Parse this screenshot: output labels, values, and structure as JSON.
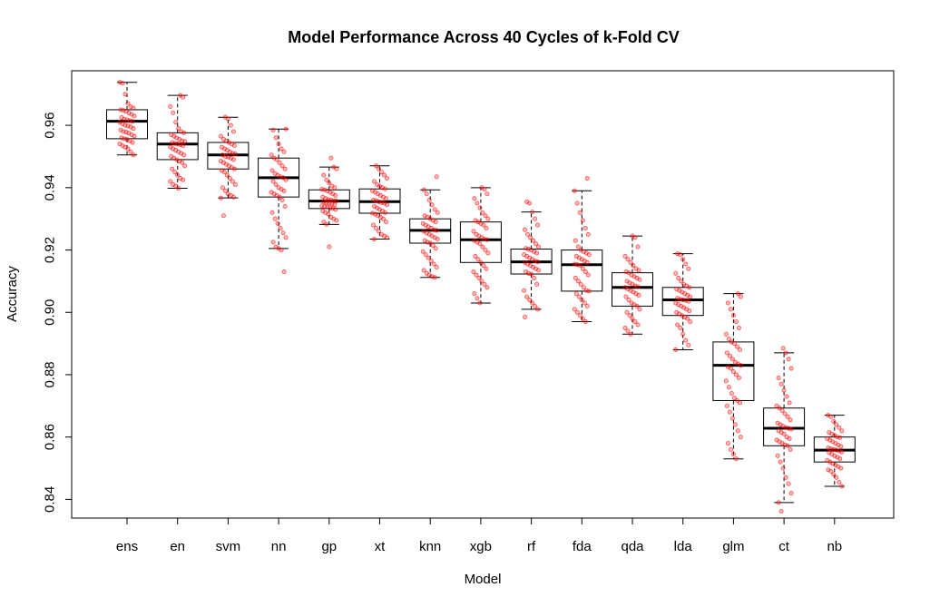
{
  "chart_data": {
    "type": "boxplot",
    "title": "Model Performance Across 40 Cycles of k-Fold CV",
    "xlabel": "Model",
    "ylabel": "Accuracy",
    "ylim": [
      0.834,
      0.9775
    ],
    "yticks": [
      0.84,
      0.86,
      0.88,
      0.9,
      0.92,
      0.94,
      0.96
    ],
    "ytick_labels": [
      "0.84",
      "0.86",
      "0.88",
      "0.90",
      "0.92",
      "0.94",
      "0.96"
    ],
    "grid": false,
    "box_color": "#000000",
    "point_color": "#ff0000",
    "categories": [
      "ens",
      "en",
      "svm",
      "nn",
      "gp",
      "xt",
      "knn",
      "xgb",
      "rf",
      "fda",
      "qda",
      "lda",
      "glm",
      "ct",
      "nb"
    ],
    "boxes": [
      {
        "name": "ens",
        "whisker_low": 0.9505,
        "q1": 0.9557,
        "median": 0.9613,
        "q3": 0.965,
        "whisker_high": 0.9738
      },
      {
        "name": "en",
        "whisker_low": 0.9398,
        "q1": 0.949,
        "median": 0.954,
        "q3": 0.9576,
        "whisker_high": 0.9696
      },
      {
        "name": "svm",
        "whisker_low": 0.9367,
        "q1": 0.946,
        "median": 0.9505,
        "q3": 0.9545,
        "whisker_high": 0.9626
      },
      {
        "name": "nn",
        "whisker_low": 0.9205,
        "q1": 0.937,
        "median": 0.9432,
        "q3": 0.9495,
        "whisker_high": 0.9588
      },
      {
        "name": "gp",
        "whisker_low": 0.9282,
        "q1": 0.9333,
        "median": 0.9357,
        "q3": 0.9393,
        "whisker_high": 0.9466
      },
      {
        "name": "xt",
        "whisker_low": 0.9235,
        "q1": 0.9318,
        "median": 0.9355,
        "q3": 0.9396,
        "whisker_high": 0.947
      },
      {
        "name": "knn",
        "whisker_low": 0.9112,
        "q1": 0.9222,
        "median": 0.9263,
        "q3": 0.93,
        "whisker_high": 0.9393
      },
      {
        "name": "xgb",
        "whisker_low": 0.903,
        "q1": 0.916,
        "median": 0.9233,
        "q3": 0.929,
        "whisker_high": 0.94
      },
      {
        "name": "rf",
        "whisker_low": 0.901,
        "q1": 0.9123,
        "median": 0.9162,
        "q3": 0.9203,
        "whisker_high": 0.9322
      },
      {
        "name": "fda",
        "whisker_low": 0.897,
        "q1": 0.9068,
        "median": 0.9153,
        "q3": 0.92,
        "whisker_high": 0.939
      },
      {
        "name": "qda",
        "whisker_low": 0.893,
        "q1": 0.902,
        "median": 0.908,
        "q3": 0.9127,
        "whisker_high": 0.9245
      },
      {
        "name": "lda",
        "whisker_low": 0.888,
        "q1": 0.899,
        "median": 0.904,
        "q3": 0.908,
        "whisker_high": 0.9188
      },
      {
        "name": "glm",
        "whisker_low": 0.853,
        "q1": 0.8717,
        "median": 0.883,
        "q3": 0.8905,
        "whisker_high": 0.906
      },
      {
        "name": "ct",
        "whisker_low": 0.839,
        "q1": 0.8572,
        "median": 0.8628,
        "q3": 0.8693,
        "whisker_high": 0.887
      },
      {
        "name": "nb",
        "whisker_low": 0.8442,
        "q1": 0.852,
        "median": 0.8558,
        "q3": 0.86,
        "whisker_high": 0.867
      }
    ],
    "points": {
      "ens": [
        0.9738,
        0.9735,
        0.97,
        0.967,
        0.966,
        0.9655,
        0.965,
        0.9648,
        0.9645,
        0.964,
        0.9635,
        0.963,
        0.9625,
        0.962,
        0.9618,
        0.9615,
        0.9613,
        0.961,
        0.9605,
        0.96,
        0.9598,
        0.9595,
        0.959,
        0.9585,
        0.958,
        0.9578,
        0.9575,
        0.957,
        0.9565,
        0.956,
        0.9557,
        0.9555,
        0.955,
        0.9545,
        0.954,
        0.9535,
        0.953,
        0.9525,
        0.9515,
        0.9505
      ],
      "en": [
        0.9696,
        0.969,
        0.966,
        0.964,
        0.961,
        0.959,
        0.958,
        0.9576,
        0.957,
        0.9565,
        0.956,
        0.9555,
        0.955,
        0.9548,
        0.9545,
        0.9542,
        0.954,
        0.9538,
        0.9535,
        0.953,
        0.9525,
        0.952,
        0.9515,
        0.951,
        0.9505,
        0.95,
        0.9495,
        0.949,
        0.9485,
        0.948,
        0.947,
        0.946,
        0.945,
        0.944,
        0.943,
        0.9425,
        0.942,
        0.941,
        0.9405,
        0.9398
      ],
      "svm": [
        0.9626,
        0.962,
        0.96,
        0.958,
        0.9565,
        0.9555,
        0.955,
        0.9545,
        0.954,
        0.9535,
        0.953,
        0.9525,
        0.952,
        0.9515,
        0.951,
        0.9508,
        0.9505,
        0.95,
        0.9498,
        0.9495,
        0.949,
        0.9485,
        0.948,
        0.9475,
        0.947,
        0.9465,
        0.946,
        0.9455,
        0.945,
        0.944,
        0.943,
        0.942,
        0.941,
        0.94,
        0.939,
        0.938,
        0.9375,
        0.937,
        0.9367,
        0.931
      ],
      "nn": [
        0.9588,
        0.9585,
        0.956,
        0.954,
        0.9525,
        0.9515,
        0.9505,
        0.9495,
        0.949,
        0.948,
        0.947,
        0.946,
        0.9455,
        0.9445,
        0.944,
        0.9435,
        0.9432,
        0.9425,
        0.942,
        0.941,
        0.94,
        0.9395,
        0.939,
        0.9385,
        0.938,
        0.9375,
        0.937,
        0.936,
        0.934,
        0.932,
        0.93,
        0.9285,
        0.927,
        0.9255,
        0.924,
        0.9225,
        0.921,
        0.9205,
        0.92,
        0.913
      ],
      "gp": [
        0.9495,
        0.9466,
        0.946,
        0.944,
        0.9425,
        0.9415,
        0.9405,
        0.94,
        0.9395,
        0.9393,
        0.939,
        0.9385,
        0.938,
        0.9375,
        0.937,
        0.9365,
        0.9362,
        0.936,
        0.9358,
        0.9357,
        0.9355,
        0.9352,
        0.935,
        0.9348,
        0.9345,
        0.9342,
        0.934,
        0.9338,
        0.9335,
        0.9333,
        0.933,
        0.9325,
        0.932,
        0.9315,
        0.9305,
        0.93,
        0.9295,
        0.929,
        0.9282,
        0.921
      ],
      "xt": [
        0.947,
        0.946,
        0.945,
        0.944,
        0.943,
        0.942,
        0.941,
        0.9405,
        0.94,
        0.9396,
        0.939,
        0.9385,
        0.938,
        0.9375,
        0.937,
        0.9365,
        0.936,
        0.9358,
        0.9355,
        0.9352,
        0.935,
        0.9345,
        0.934,
        0.9335,
        0.933,
        0.9325,
        0.932,
        0.9318,
        0.9315,
        0.931,
        0.9305,
        0.93,
        0.929,
        0.928,
        0.927,
        0.926,
        0.925,
        0.9245,
        0.924,
        0.9235
      ],
      "knn": [
        0.9435,
        0.9393,
        0.938,
        0.936,
        0.9345,
        0.933,
        0.932,
        0.931,
        0.9305,
        0.93,
        0.9295,
        0.929,
        0.9285,
        0.928,
        0.9275,
        0.927,
        0.9265,
        0.9263,
        0.926,
        0.9255,
        0.925,
        0.9245,
        0.924,
        0.9235,
        0.923,
        0.9225,
        0.9222,
        0.9215,
        0.9205,
        0.9195,
        0.9185,
        0.9175,
        0.9165,
        0.9155,
        0.9145,
        0.9135,
        0.9125,
        0.912,
        0.9115,
        0.9112
      ],
      "xgb": [
        0.94,
        0.9395,
        0.938,
        0.9365,
        0.935,
        0.9335,
        0.932,
        0.931,
        0.93,
        0.9295,
        0.929,
        0.9285,
        0.928,
        0.927,
        0.926,
        0.925,
        0.9245,
        0.924,
        0.9235,
        0.9233,
        0.923,
        0.9225,
        0.922,
        0.921,
        0.92,
        0.919,
        0.918,
        0.917,
        0.916,
        0.915,
        0.914,
        0.913,
        0.912,
        0.911,
        0.91,
        0.909,
        0.908,
        0.906,
        0.9045,
        0.903
      ],
      "rf": [
        0.9355,
        0.935,
        0.9322,
        0.93,
        0.928,
        0.9265,
        0.925,
        0.924,
        0.923,
        0.922,
        0.921,
        0.9205,
        0.9203,
        0.92,
        0.9195,
        0.919,
        0.9185,
        0.918,
        0.9175,
        0.917,
        0.9165,
        0.9162,
        0.916,
        0.9155,
        0.915,
        0.9145,
        0.914,
        0.9135,
        0.913,
        0.9125,
        0.9123,
        0.911,
        0.909,
        0.907,
        0.905,
        0.904,
        0.903,
        0.902,
        0.901,
        0.8985
      ],
      "fda": [
        0.943,
        0.939,
        0.935,
        0.932,
        0.9295,
        0.927,
        0.925,
        0.923,
        0.921,
        0.92,
        0.9195,
        0.919,
        0.9185,
        0.918,
        0.9175,
        0.917,
        0.9165,
        0.916,
        0.9155,
        0.9153,
        0.915,
        0.914,
        0.913,
        0.912,
        0.911,
        0.91,
        0.909,
        0.908,
        0.907,
        0.9068,
        0.906,
        0.905,
        0.904,
        0.903,
        0.902,
        0.901,
        0.9,
        0.899,
        0.898,
        0.897
      ],
      "qda": [
        0.9245,
        0.924,
        0.921,
        0.918,
        0.917,
        0.916,
        0.915,
        0.914,
        0.9135,
        0.913,
        0.9127,
        0.912,
        0.9115,
        0.911,
        0.9105,
        0.91,
        0.9095,
        0.909,
        0.9085,
        0.9082,
        0.908,
        0.9075,
        0.907,
        0.9065,
        0.906,
        0.9055,
        0.905,
        0.904,
        0.903,
        0.9025,
        0.902,
        0.901,
        0.9,
        0.899,
        0.898,
        0.897,
        0.896,
        0.895,
        0.894,
        0.893
      ],
      "lda": [
        0.9188,
        0.9185,
        0.917,
        0.9155,
        0.914,
        0.9125,
        0.911,
        0.91,
        0.909,
        0.9085,
        0.908,
        0.9075,
        0.907,
        0.9065,
        0.906,
        0.9055,
        0.905,
        0.9045,
        0.9042,
        0.904,
        0.9038,
        0.9035,
        0.903,
        0.9025,
        0.902,
        0.9015,
        0.901,
        0.9005,
        0.9,
        0.8995,
        0.899,
        0.8985,
        0.898,
        0.897,
        0.896,
        0.895,
        0.893,
        0.891,
        0.8895,
        0.888
      ],
      "glm": [
        0.906,
        0.905,
        0.903,
        0.901,
        0.899,
        0.897,
        0.895,
        0.893,
        0.8915,
        0.8905,
        0.89,
        0.889,
        0.888,
        0.887,
        0.886,
        0.885,
        0.884,
        0.8835,
        0.883,
        0.8825,
        0.882,
        0.881,
        0.88,
        0.879,
        0.878,
        0.876,
        0.874,
        0.8725,
        0.8717,
        0.871,
        0.87,
        0.868,
        0.866,
        0.864,
        0.862,
        0.86,
        0.858,
        0.856,
        0.8545,
        0.853
      ],
      "ct": [
        0.8885,
        0.887,
        0.885,
        0.882,
        0.879,
        0.877,
        0.875,
        0.873,
        0.871,
        0.87,
        0.8693,
        0.8685,
        0.8675,
        0.8665,
        0.8655,
        0.8645,
        0.864,
        0.8635,
        0.863,
        0.8628,
        0.8625,
        0.862,
        0.8615,
        0.861,
        0.86,
        0.8595,
        0.859,
        0.8585,
        0.858,
        0.8575,
        0.8572,
        0.856,
        0.854,
        0.852,
        0.85,
        0.847,
        0.845,
        0.842,
        0.839,
        0.8362
      ],
      "nb": [
        0.867,
        0.8665,
        0.865,
        0.864,
        0.863,
        0.862,
        0.8615,
        0.861,
        0.8605,
        0.86,
        0.8598,
        0.8595,
        0.859,
        0.8585,
        0.858,
        0.8575,
        0.857,
        0.8565,
        0.8562,
        0.856,
        0.8558,
        0.8555,
        0.8552,
        0.855,
        0.8545,
        0.854,
        0.8535,
        0.853,
        0.8525,
        0.852,
        0.8515,
        0.851,
        0.8505,
        0.85,
        0.8495,
        0.849,
        0.848,
        0.847,
        0.8455,
        0.8442
      ]
    }
  }
}
